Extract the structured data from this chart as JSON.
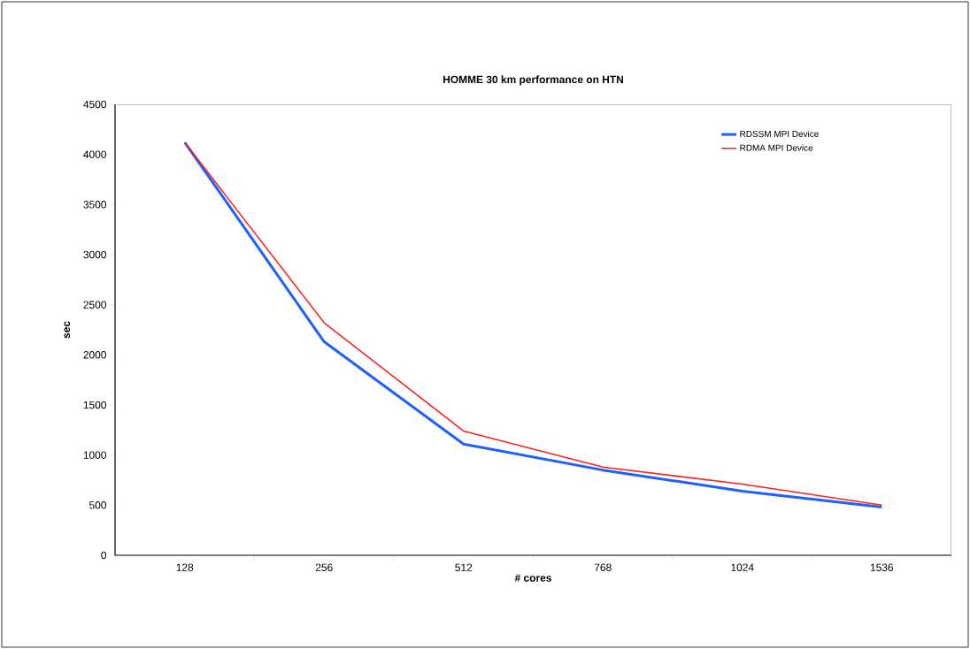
{
  "chart_data": {
    "type": "line",
    "title": "HOMME 30 km performance on HTN",
    "xlabel": "# cores",
    "ylabel": "sec",
    "categories": [
      "128",
      "256",
      "512",
      "768",
      "1024",
      "1536"
    ],
    "series": [
      {
        "name": "RDSSM MPI Device",
        "color": "#1f5fff",
        "values": [
          4120,
          2130,
          1110,
          850,
          640,
          480
        ]
      },
      {
        "name": "RDMA MPI Device",
        "color": "#ff1f1f",
        "values": [
          4120,
          2320,
          1240,
          880,
          710,
          500
        ]
      }
    ],
    "ylim": [
      0,
      4500
    ],
    "yticks": [
      0,
      500,
      1000,
      1500,
      2000,
      2500,
      3000,
      3500,
      4000,
      4500
    ],
    "grid": false,
    "legend": "top right",
    "marker": "none",
    "line_style": "solid"
  }
}
